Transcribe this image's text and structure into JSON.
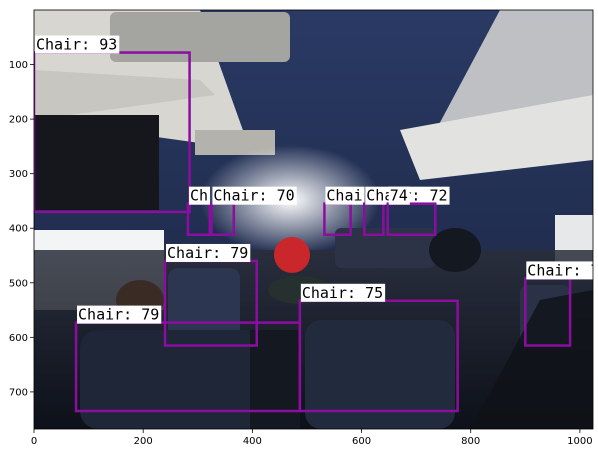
{
  "axes": {
    "x_ticks": [
      0,
      200,
      400,
      600,
      800,
      1000
    ],
    "y_ticks": [
      100,
      200,
      300,
      400,
      500,
      600,
      700
    ],
    "x_range": [
      0,
      1024
    ],
    "y_range": [
      0,
      768
    ],
    "tick_label_color": "#000000"
  },
  "scene": {
    "description_colors": {
      "ceiling": "#1e2a4a",
      "window": "#f4f6f8",
      "seat": "#20283c",
      "shadow": "#0c0e14",
      "red_hat": "#c9272b"
    }
  },
  "detections": {
    "box_color": "#8b0ea0",
    "label_bg": "#ffffff",
    "items": [
      {
        "text": "Chair: 93",
        "x0": 0,
        "y0": 78,
        "x1": 285,
        "y1": 370
      },
      {
        "text": "Ch",
        "x0": 282,
        "y0": 355,
        "x1": 322,
        "y1": 412
      },
      {
        "text": "Chair: 70",
        "x0": 325,
        "y0": 355,
        "x1": 366,
        "y1": 412
      },
      {
        "text": "Chai",
        "x0": 532,
        "y0": 355,
        "x1": 580,
        "y1": 412
      },
      {
        "text": "Chair: 72",
        "x0": 605,
        "y0": 355,
        "x1": 640,
        "y1": 412
      },
      {
        "text": "74",
        "x0": 648,
        "y0": 355,
        "x1": 735,
        "y1": 412
      },
      {
        "text": "Chair: 79",
        "x0": 240,
        "y0": 460,
        "x1": 408,
        "y1": 615
      },
      {
        "text": "Chair: 75",
        "x0": 487,
        "y0": 533,
        "x1": 776,
        "y1": 735
      },
      {
        "text": "Chair: 79",
        "x0": 77,
        "y0": 573,
        "x1": 487,
        "y1": 735
      },
      {
        "text": "Chair: 7",
        "x0": 900,
        "y0": 492,
        "x1": 982,
        "y1": 615
      }
    ]
  }
}
